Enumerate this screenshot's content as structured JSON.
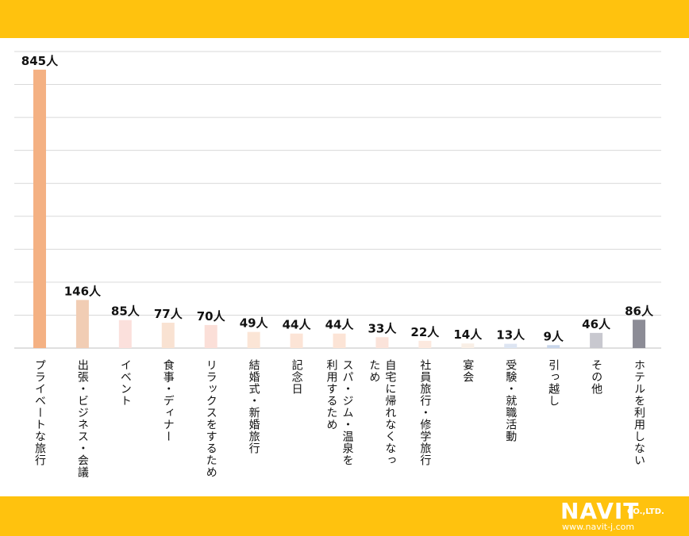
{
  "colors": {
    "band": "#FFC20E",
    "grid": "#d9d9d9",
    "axis": "#bfbfbf"
  },
  "logo": {
    "brand": "NAVIT",
    "company_suffix": "CO.,LTD.",
    "url": "www.navit-j.com"
  },
  "chart_data": {
    "type": "bar",
    "title": "",
    "xlabel": "",
    "ylabel": "",
    "ylim": [
      0,
      900
    ],
    "grid": true,
    "categories": [
      "プライベートな旅行",
      "出張・ビジネス・会議",
      "イベント",
      "食事・ディナー",
      "リラックスをするため",
      "結婚式・新婚旅行",
      "記念日",
      "スパ・ジム・温泉を利用するため",
      "自宅に帰れなくなったため",
      "社員旅行・修学旅行",
      "宴会",
      "受験・就職活動",
      "引っ越し",
      "その他",
      "ホテルを利用しない"
    ],
    "category_lines": [
      [
        "プライベートな旅行"
      ],
      [
        "出張・ビジネス・会議"
      ],
      [
        "イベント"
      ],
      [
        "食事・ディナー"
      ],
      [
        "リラックスをするため"
      ],
      [
        "結婚式・新婚旅行"
      ],
      [
        "記念日"
      ],
      [
        "スパ・ジム・温泉を",
        "利用するため"
      ],
      [
        "自宅に帰れなくなっ",
        "ため"
      ],
      [
        "社員旅行・修学旅行"
      ],
      [
        "宴会"
      ],
      [
        "受験・就職活動"
      ],
      [
        "引っ越し"
      ],
      [
        "その他"
      ],
      [
        "ホテルを利用しない"
      ]
    ],
    "values": [
      845,
      146,
      85,
      77,
      70,
      49,
      44,
      44,
      33,
      22,
      14,
      13,
      9,
      46,
      86
    ],
    "value_labels": [
      "845人",
      "146人",
      "85人",
      "77人",
      "70人",
      "49人",
      "44人",
      "44人",
      "33人",
      "22人",
      "14人",
      "13人",
      "9人",
      "46人",
      "86人"
    ],
    "bar_colors": [
      "#F4B183",
      "#F1CDB4",
      "#FBE0DC",
      "#F9E2D2",
      "#FBDFD8",
      "#FBE5D6",
      "#FCE4D6",
      "#FCE4D6",
      "#FBE3DA",
      "#FCE9DF",
      "#F9EFE6",
      "#DDE5F2",
      "#C9D6EA",
      "#C8C8CF",
      "#8C8C96"
    ]
  }
}
